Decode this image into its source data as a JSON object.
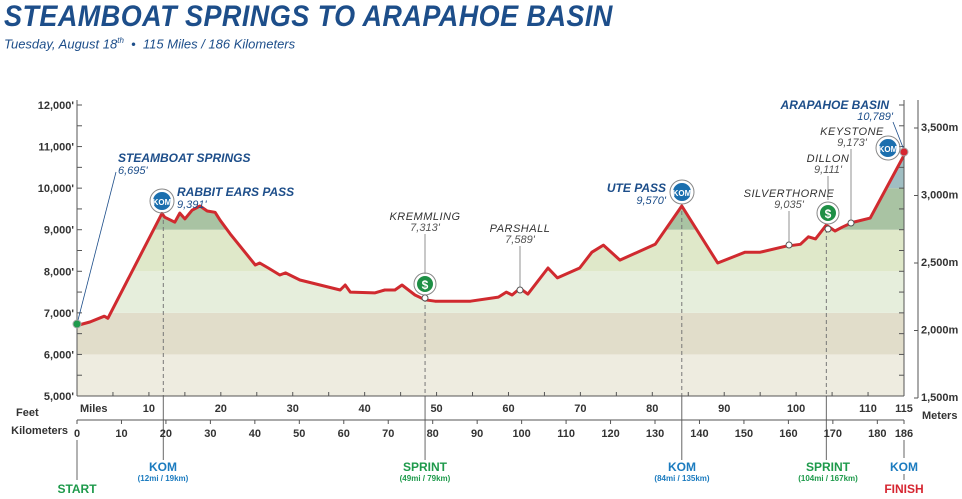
{
  "header": {
    "title": "STEAMBOAT SPRINGS TO ARAPAHOE BASIN",
    "date": "Tuesday, August 18",
    "date_suffix": "th",
    "bullet": "•",
    "distance": "115 Miles / 186 Kilometers"
  },
  "colors": {
    "profile": "#d02a2f",
    "navy": "#1d4e8a",
    "kom": "#1b7bbf",
    "sprint": "#1e9a4b",
    "finish": "#d62631"
  },
  "chart_data": {
    "type": "area",
    "title": "STEAMBOAT SPRINGS TO ARAPAHOE BASIN",
    "xlabel": "Miles",
    "ylabel": "Feet",
    "y2label": "Meters",
    "x2label": "Kilometers",
    "xlim": [
      0,
      115
    ],
    "ylim": [
      5000,
      12000
    ],
    "y_ticks": [
      "5,000'",
      "6,000'",
      "7,000'",
      "8,000'",
      "9,000'",
      "10,000'",
      "11,000'",
      "12,000'"
    ],
    "y2_ticks": [
      "1,500m",
      "2,000m",
      "2,500m",
      "3,000m",
      "3,500m"
    ],
    "mile_ticks": [
      "10",
      "20",
      "30",
      "40",
      "50",
      "60",
      "70",
      "80",
      "90",
      "100",
      "110",
      "115"
    ],
    "km_ticks": [
      "0",
      "10",
      "20",
      "30",
      "40",
      "50",
      "60",
      "70",
      "80",
      "90",
      "100",
      "110",
      "120",
      "130",
      "140",
      "150",
      "160",
      "170",
      "180",
      "186"
    ],
    "bands_ft": [
      5000,
      6000,
      7000,
      8000,
      9000,
      10000,
      11000
    ],
    "profile": [
      [
        0,
        6695
      ],
      [
        1.8,
        6780
      ],
      [
        3.8,
        6920
      ],
      [
        4.3,
        6870
      ],
      [
        11.8,
        9391
      ],
      [
        12.2,
        9300
      ],
      [
        13.6,
        9180
      ],
      [
        14.3,
        9400
      ],
      [
        15,
        9260
      ],
      [
        16,
        9470
      ],
      [
        17.1,
        9570
      ],
      [
        18.1,
        9450
      ],
      [
        19.2,
        9420
      ],
      [
        19.9,
        9230
      ],
      [
        21.3,
        8900
      ],
      [
        24.8,
        8150
      ],
      [
        25.4,
        8200
      ],
      [
        26.6,
        8080
      ],
      [
        28.2,
        7910
      ],
      [
        29,
        7960
      ],
      [
        31,
        7790
      ],
      [
        36.6,
        7550
      ],
      [
        37.3,
        7670
      ],
      [
        38,
        7500
      ],
      [
        41.4,
        7480
      ],
      [
        42.8,
        7550
      ],
      [
        44.2,
        7550
      ],
      [
        45.2,
        7670
      ],
      [
        47,
        7430
      ],
      [
        48.4,
        7313
      ],
      [
        49.8,
        7280
      ],
      [
        54.7,
        7280
      ],
      [
        58.6,
        7380
      ],
      [
        59.7,
        7500
      ],
      [
        60.5,
        7430
      ],
      [
        61.6,
        7589
      ],
      [
        62.7,
        7450
      ],
      [
        65.5,
        8080
      ],
      [
        66.8,
        7840
      ],
      [
        69.9,
        8080
      ],
      [
        71.6,
        8460
      ],
      [
        73.2,
        8630
      ],
      [
        75.5,
        8270
      ],
      [
        80.4,
        8650
      ],
      [
        84.1,
        9570
      ],
      [
        89.1,
        8200
      ],
      [
        92.9,
        8460
      ],
      [
        95,
        8460
      ],
      [
        98.5,
        8600
      ],
      [
        100.6,
        8650
      ],
      [
        101.7,
        8830
      ],
      [
        102.7,
        8780
      ],
      [
        104.2,
        9111
      ],
      [
        105.4,
        8970
      ],
      [
        106.4,
        9060
      ],
      [
        107.8,
        9173
      ],
      [
        110.3,
        9280
      ],
      [
        115,
        10789
      ]
    ],
    "places": [
      {
        "name": "STEAMBOAT SPRINGS",
        "elev": "6,695'"
      },
      {
        "name": "RABBIT EARS PASS",
        "elev": "9,391'"
      },
      {
        "name": "KREMMLING",
        "elev": "7,313'"
      },
      {
        "name": "PARSHALL",
        "elev": "7,589'"
      },
      {
        "name": "UTE PASS",
        "elev": "9,570'"
      },
      {
        "name": "SILVERTHORNE",
        "elev": "9,035'"
      },
      {
        "name": "DILLON",
        "elev": "9,111'"
      },
      {
        "name": "KEYSTONE",
        "elev": "9,173'"
      },
      {
        "name": "ARAPAHOE BASIN",
        "elev": "10,789'"
      }
    ],
    "badges": {
      "kom": "KOM",
      "sprint": "$"
    },
    "events": [
      {
        "label": "START",
        "detail": ""
      },
      {
        "label": "KOM",
        "detail": "(12mi / 19km)"
      },
      {
        "label": "SPRINT",
        "detail": "(49mi / 79km)"
      },
      {
        "label": "KOM",
        "detail": "(84mi / 135km)"
      },
      {
        "label": "SPRINT",
        "detail": "(104mi / 167km)"
      },
      {
        "label": "KOM",
        "detail": ""
      },
      {
        "label": "FINISH",
        "detail": ""
      }
    ]
  }
}
